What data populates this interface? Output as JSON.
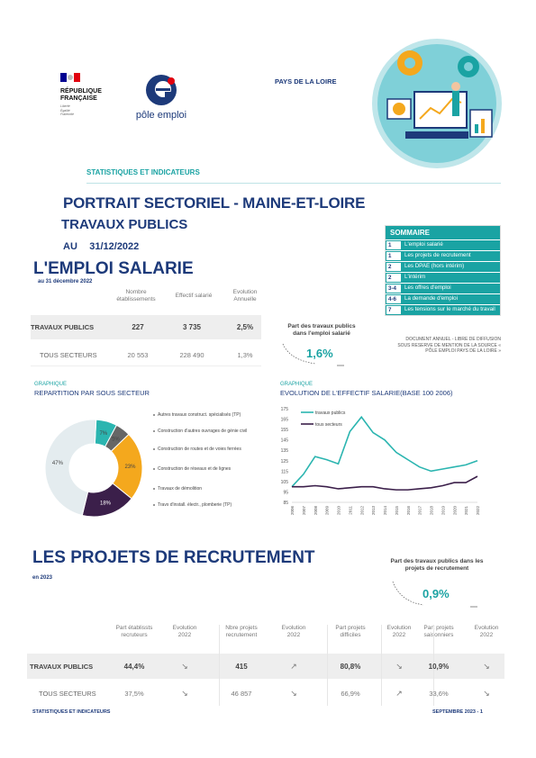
{
  "header": {
    "republique": [
      "RÉPUBLIQUE",
      "FRANÇAISE"
    ],
    "motto": [
      "Liberté",
      "Égalité",
      "Fraternité"
    ],
    "pole_emploi": "pôle emploi",
    "region": "PAYS DE LA LOIRE",
    "stat_label": "STATISTIQUES ET INDICATEURS"
  },
  "titles": {
    "portrait": "PORTRAIT SECTORIEL - MAINE-ET-LOIRE",
    "sector": "TRAVAUX PUBLICS",
    "au": "AU",
    "date": "31/12/2022"
  },
  "sommaire": {
    "title": "SOMMAIRE",
    "items": [
      {
        "num": "1",
        "label": "L'emploi salarié"
      },
      {
        "num": "1",
        "label": "Les projets de recrutement"
      },
      {
        "num": "2",
        "label": "Les DPAE (hors intérim)"
      },
      {
        "num": "2",
        "label": "L'intérim"
      },
      {
        "num": "3-4",
        "label": "Les offres d'emploi"
      },
      {
        "num": "4-6",
        "label": "La demande d'emploi"
      },
      {
        "num": "7",
        "label": "Les tensions sur le marché du travail"
      }
    ],
    "note": [
      "DOCUMENT ANNUEL - LIBRE DE DIFFUSION",
      "SOUS RESERVE DE MENTION DE LA SOURCE «",
      "PÔLE EMPLOI PAYS DE LA LOIRE »"
    ]
  },
  "emploi": {
    "title": "L'EMPLOI SALARIE",
    "subtitle": "au 31 décembre 2022",
    "columns": [
      "Nombre établissements",
      "Effectif salarié",
      "Evolution Annuelle"
    ],
    "rows": [
      {
        "label": "TRAVAUX PUBLICS",
        "values": [
          "227",
          "3 735",
          "2,5%"
        ]
      },
      {
        "label": "TOUS SECTEURS",
        "values": [
          "20 553",
          "228 490",
          "1,3%"
        ]
      }
    ],
    "part_label": [
      "Part des travaux publics",
      "dans l'emploi salarié"
    ],
    "part_value": "1,6%"
  },
  "pie": {
    "small": "GRAPHIQUE",
    "title": "REPARTITION PAR SOUS SECTEUR",
    "legend": [
      "Autres travaux construct. spécialisés (TP)",
      "Construction d'autres ouvrages de génie civil",
      "Construction de routes et de voies ferrées",
      "Construction de réseaux et de lignes",
      "Travaux de démolition",
      "Travx d'install. électr., plomberie (TP)"
    ]
  },
  "line": {
    "small": "GRAPHIQUE",
    "title": "EVOLUTION DE L'EFFECTIF SALARIE(BASE 100 2006)"
  },
  "chart_data": [
    {
      "type": "pie",
      "categories": [
        "Autres travaux construct. spécialisés (TP)",
        "Construction d'autres ouvrages de génie civil",
        "Construction de routes et de voies ferrées",
        "Construction de réseaux et de lignes",
        "Travaux de démolition",
        "Travx d'install. électr., plomberie (TP)"
      ],
      "values": [
        7,
        5,
        23,
        18,
        0,
        47
      ],
      "labels": [
        "7%",
        "5%",
        "23%",
        "18%",
        "",
        "47%"
      ],
      "colors": [
        "#2bb5b0",
        "#666666",
        "#f4a81d",
        "#3b1f4a",
        "#b0b0b0",
        "#e4ecef"
      ]
    },
    {
      "type": "line",
      "x": [
        "2006",
        "2007",
        "2008",
        "2009",
        "2010",
        "2011",
        "2012",
        "2013",
        "2014",
        "2015",
        "2016",
        "2017",
        "2018",
        "2019",
        "2020",
        "2021",
        "2022"
      ],
      "ylim": [
        85,
        175
      ],
      "yticks": [
        85,
        95,
        105,
        115,
        125,
        135,
        145,
        155,
        165,
        175
      ],
      "series": [
        {
          "name": "travaux publics",
          "color": "#2bb5b0",
          "values": [
            100,
            112,
            129,
            126,
            122,
            153,
            167,
            152,
            145,
            133,
            126,
            119,
            115,
            117,
            119,
            121,
            125
          ]
        },
        {
          "name": "tous secteurs",
          "color": "#3b1f4a",
          "values": [
            100,
            100,
            101,
            100,
            98,
            99,
            100,
            100,
            98,
            97,
            97,
            98,
            99,
            101,
            104,
            104,
            110
          ]
        }
      ]
    }
  ],
  "recrutement": {
    "title": "LES PROJETS DE RECRUTEMENT",
    "subtitle": "en 2023",
    "part_label": [
      "Part des travaux publics dans les",
      "projets de recrutement"
    ],
    "part_value": "0,9%",
    "columns": [
      "Part établissts recruteurs",
      "Evolution 2022",
      "Nbre projets recrutement",
      "Evolution 2022",
      "Part projets difficiles",
      "Evolution 2022",
      "Part projets saisonniers",
      "Evolution 2022"
    ],
    "rows": [
      {
        "label": "TRAVAUX PUBLICS",
        "values": [
          "44,4%",
          "↘",
          "415",
          "↗",
          "80,8%",
          "↘",
          "10,9%",
          "↘"
        ]
      },
      {
        "label": "TOUS SECTEURS",
        "values": [
          "37,5%",
          "↘",
          "46 857",
          "↘",
          "66,9%",
          "↗",
          "33,6%",
          "↘"
        ]
      }
    ]
  },
  "footer": {
    "left": "STATISTIQUES ET INDICATEURS",
    "right": "SEPTEMBRE 2023 - 1"
  }
}
